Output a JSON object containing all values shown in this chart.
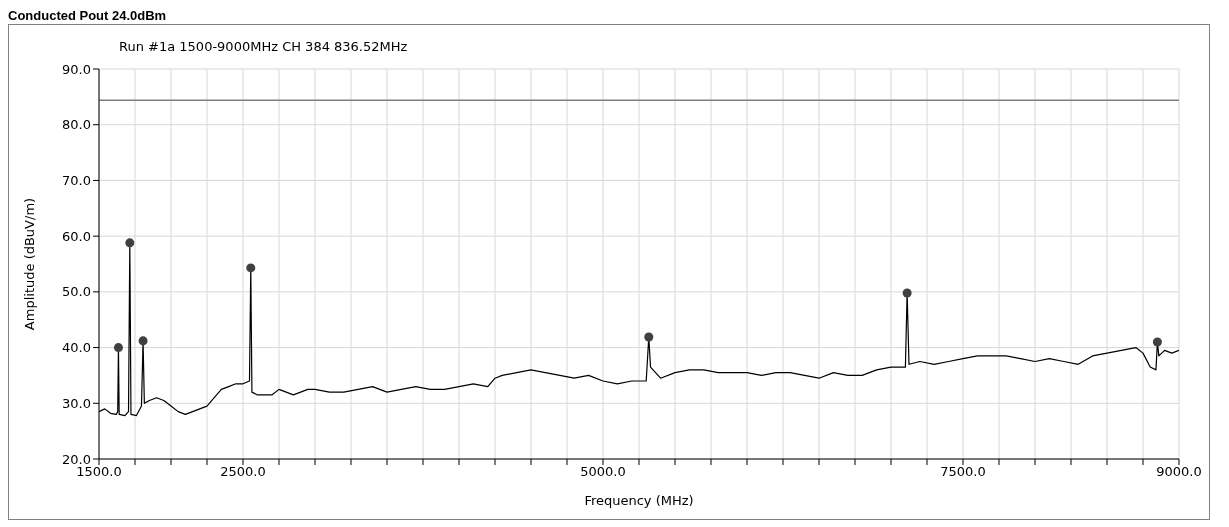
{
  "chart_data": {
    "type": "line",
    "title": "Run #1a 1500-9000MHz CH 384 836.52MHz",
    "xlabel": "Frequency (MHz)",
    "ylabel": "Amplitude (dBuV/m)",
    "annotations": [
      "Conducted Pout 24.0dBm"
    ],
    "xlim": [
      1500,
      9000
    ],
    "xticks": [
      {
        "value": 1500,
        "label": "1500.0"
      },
      {
        "value": 1750,
        "label": null
      },
      {
        "value": 2000,
        "label": null
      },
      {
        "value": 2250,
        "label": null
      },
      {
        "value": 2500,
        "label": "2500.0"
      },
      {
        "value": 2750,
        "label": null
      },
      {
        "value": 3000,
        "label": null
      },
      {
        "value": 3250,
        "label": null
      },
      {
        "value": 3500,
        "label": null
      },
      {
        "value": 3750,
        "label": null
      },
      {
        "value": 4000,
        "label": null
      },
      {
        "value": 4250,
        "label": null
      },
      {
        "value": 4500,
        "label": null
      },
      {
        "value": 4750,
        "label": null
      },
      {
        "value": 5000,
        "label": "5000.0"
      },
      {
        "value": 5250,
        "label": null
      },
      {
        "value": 5500,
        "label": null
      },
      {
        "value": 5750,
        "label": null
      },
      {
        "value": 6000,
        "label": null
      },
      {
        "value": 6250,
        "label": null
      },
      {
        "value": 6500,
        "label": null
      },
      {
        "value": 6750,
        "label": null
      },
      {
        "value": 7000,
        "label": null
      },
      {
        "value": 7250,
        "label": null
      },
      {
        "value": 7500,
        "label": "7500.0"
      },
      {
        "value": 7750,
        "label": null
      },
      {
        "value": 8000,
        "label": null
      },
      {
        "value": 8250,
        "label": null
      },
      {
        "value": 8500,
        "label": null
      },
      {
        "value": 8750,
        "label": null
      },
      {
        "value": 9000,
        "label": "9000.0"
      }
    ],
    "ylim": [
      20,
      90
    ],
    "yticks": [
      {
        "value": 20,
        "label": "20.0"
      },
      {
        "value": 30,
        "label": "30.0"
      },
      {
        "value": 40,
        "label": "40.0"
      },
      {
        "value": 50,
        "label": "50.0"
      },
      {
        "value": 60,
        "label": "60.0"
      },
      {
        "value": 70,
        "label": "70.0"
      },
      {
        "value": 80,
        "label": "80.0"
      },
      {
        "value": 90,
        "label": "90.0"
      }
    ],
    "grid": true,
    "ref_lines": [
      {
        "axis": "y",
        "value": 84.4,
        "color": "#808080"
      }
    ],
    "series": [
      {
        "color": "#000000",
        "marker": "none",
        "x": [
          1500,
          1540,
          1580,
          1620,
          1630,
          1635,
          1640,
          1680,
          1705,
          1714,
          1722,
          1760,
          1795,
          1806,
          1815,
          1850,
          1900,
          1950,
          2000,
          2050,
          2100,
          2150,
          2200,
          2250,
          2300,
          2350,
          2400,
          2450,
          2500,
          2545,
          2554,
          2562,
          2600,
          2650,
          2700,
          2750,
          2800,
          2850,
          2900,
          2950,
          3000,
          3100,
          3200,
          3300,
          3400,
          3500,
          3600,
          3700,
          3800,
          3900,
          4000,
          4100,
          4200,
          4250,
          4300,
          4400,
          4500,
          4600,
          4700,
          4800,
          4900,
          5000,
          5100,
          5200,
          5300,
          5318,
          5330,
          5400,
          5500,
          5600,
          5700,
          5800,
          5900,
          6000,
          6100,
          6200,
          6300,
          6400,
          6500,
          6600,
          6700,
          6800,
          6900,
          7000,
          7100,
          7112,
          7125,
          7200,
          7300,
          7400,
          7500,
          7600,
          7700,
          7800,
          7900,
          8000,
          8100,
          8200,
          8300,
          8400,
          8500,
          8600,
          8700,
          8750,
          8800,
          8840,
          8850,
          8860,
          8900,
          8950,
          9000
        ],
        "values": [
          28.5,
          29,
          28.2,
          28,
          28.5,
          40,
          28,
          27.8,
          28.5,
          58.8,
          28,
          27.8,
          29.5,
          41.2,
          30,
          30.5,
          31,
          30.5,
          29.5,
          28.5,
          28,
          28.5,
          29,
          29.5,
          31,
          32.5,
          33,
          33.5,
          33.5,
          34,
          54.3,
          32,
          31.5,
          31.5,
          31.5,
          32.5,
          32,
          31.5,
          32,
          32.5,
          32.5,
          32,
          32,
          32.5,
          33,
          32,
          32.5,
          33,
          32.5,
          32.5,
          33,
          33.5,
          33,
          34.5,
          35,
          35.5,
          36,
          35.5,
          35,
          34.5,
          35,
          34,
          33.5,
          34,
          34,
          41.9,
          36.5,
          34.5,
          35.5,
          36,
          36,
          35.5,
          35.5,
          35.5,
          35,
          35.5,
          35.5,
          35,
          34.5,
          35.5,
          35,
          35,
          36,
          36.5,
          36.5,
          49.8,
          37,
          37.5,
          37,
          37.5,
          38,
          38.5,
          38.5,
          38.5,
          38,
          37.5,
          38,
          37.5,
          37,
          38.5,
          39,
          39.5,
          40,
          39,
          36.5,
          36,
          41,
          38.5,
          39.5,
          39,
          39.5
        ]
      },
      {
        "type": "scatter",
        "color": "#404040",
        "marker": "circle",
        "x": [
          1635,
          1714,
          1806,
          2554,
          5318,
          7112,
          8850
        ],
        "values": [
          40,
          58.8,
          41.2,
          54.3,
          41.9,
          49.8,
          41
        ]
      }
    ]
  }
}
